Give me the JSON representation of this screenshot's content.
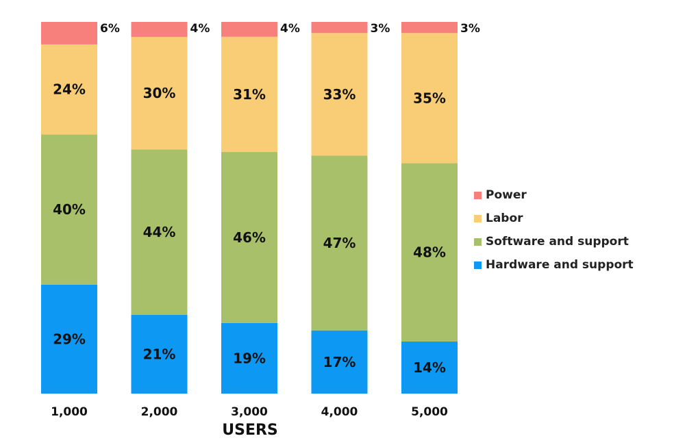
{
  "chart_data": {
    "type": "bar",
    "stacked": true,
    "xlabel": "USERS",
    "ylabel": "",
    "title": "",
    "categories": [
      "1,000",
      "2,000",
      "3,000",
      "4,000",
      "5,000"
    ],
    "series": [
      {
        "name": "Hardware and support",
        "color": "#0d98f4",
        "values": [
          29,
          21,
          19,
          17,
          14
        ],
        "labels": [
          "29%",
          "21%",
          "19%",
          "17%",
          "14%"
        ]
      },
      {
        "name": "Software and support",
        "color": "#a8c06a",
        "values": [
          40,
          44,
          46,
          47,
          48
        ],
        "labels": [
          "40%",
          "44%",
          "46%",
          "47%",
          "48%"
        ]
      },
      {
        "name": "Labor",
        "color": "#f9cd75",
        "values": [
          24,
          30,
          31,
          33,
          35
        ],
        "labels": [
          "24%",
          "30%",
          "31%",
          "33%",
          "35%"
        ]
      },
      {
        "name": "Power",
        "color": "#f77f7c",
        "values": [
          6,
          4,
          4,
          3,
          3
        ],
        "labels": [
          "6%",
          "4%",
          "4%",
          "3%",
          "3%"
        ]
      }
    ],
    "legend_position": "right",
    "legend_order": [
      "Power",
      "Labor",
      "Software and support",
      "Hardware and support"
    ],
    "grid": false
  }
}
